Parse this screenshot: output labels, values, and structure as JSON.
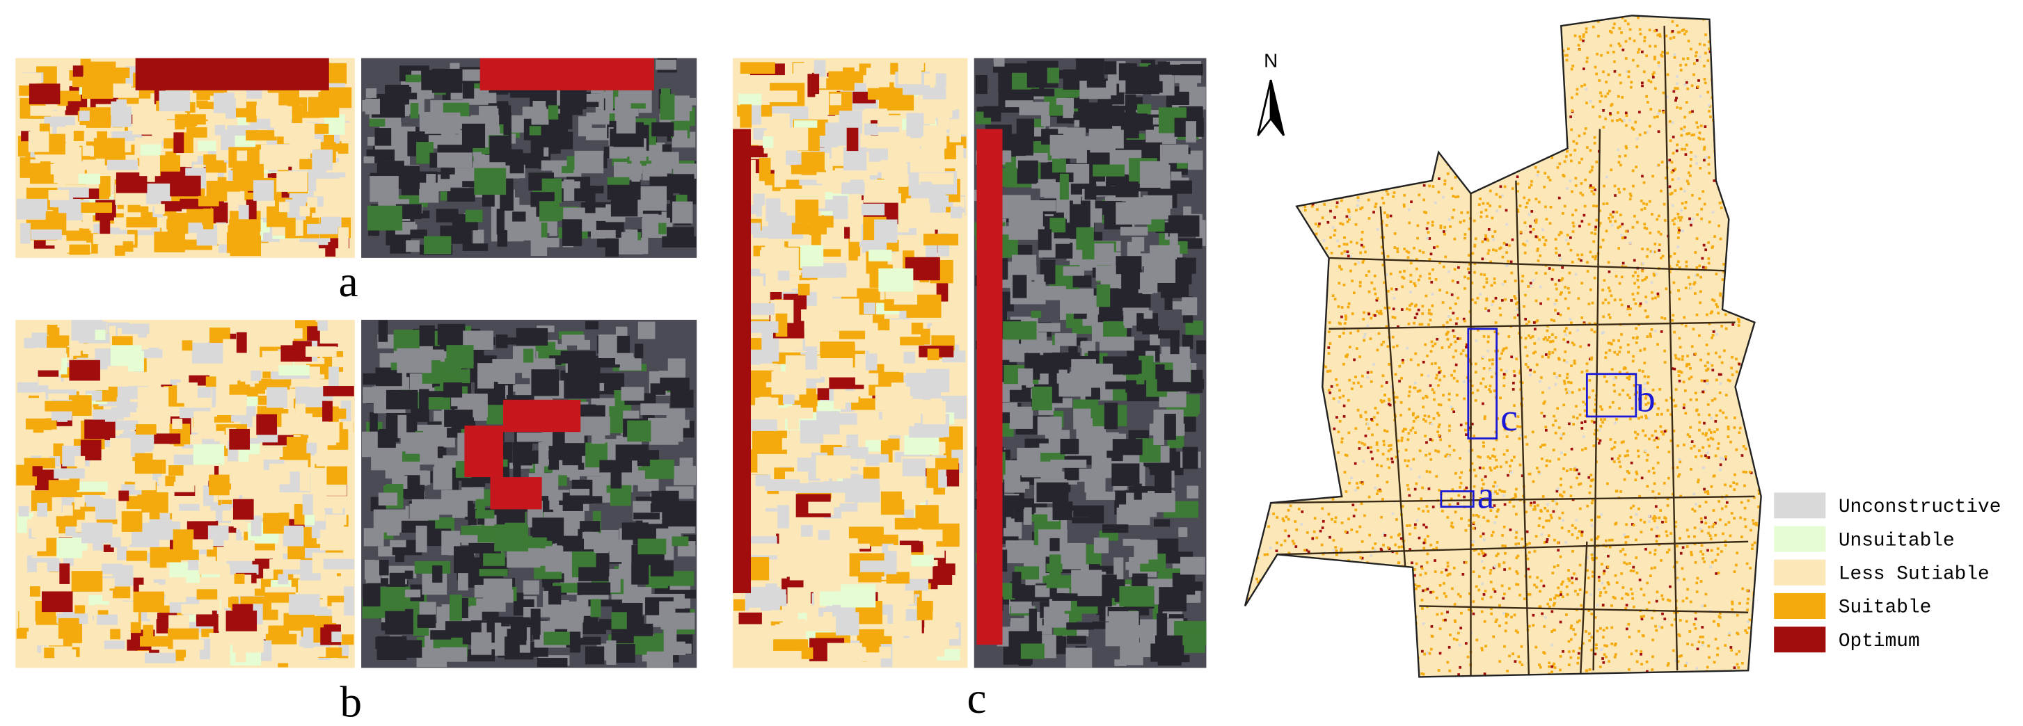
{
  "panels": [
    {
      "label": "a"
    },
    {
      "label": "b"
    },
    {
      "label": "c"
    }
  ],
  "north": "N",
  "map_labels": [
    "a",
    "b",
    "c"
  ],
  "legend": [
    {
      "label": "Unconstructive",
      "color": "#d9d9d9"
    },
    {
      "label": "Unsuitable",
      "color": "#e6fcd2"
    },
    {
      "label": "Less Sutiable",
      "color": "#fbe7b8"
    },
    {
      "label": "Suitable",
      "color": "#f4aa0c"
    },
    {
      "label": "Optimum",
      "color": "#a10d0d"
    }
  ]
}
